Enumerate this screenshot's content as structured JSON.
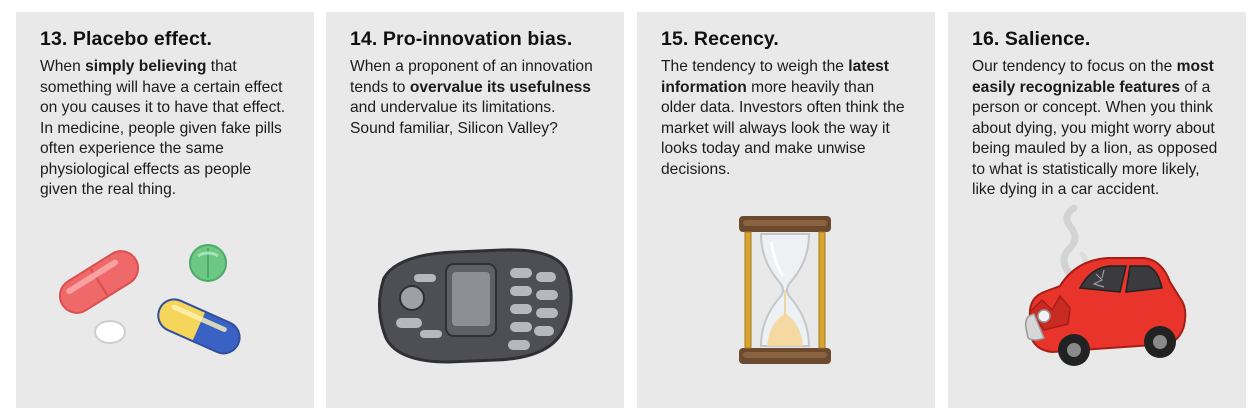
{
  "cards": [
    {
      "title": "13. Placebo effect.",
      "body": [
        {
          "t": "When ",
          "b": false
        },
        {
          "t": "simply believing",
          "b": true
        },
        {
          "t": " that something will have a certain effect on you causes it to have that effect. In medicine, people given fake pills often experience the same physiological effects as people given the real thing.",
          "b": false
        }
      ],
      "illustration": "pills-icon"
    },
    {
      "title": "14. Pro-innovation bias.",
      "body": [
        {
          "t": "When a proponent of an innovation tends to ",
          "b": false
        },
        {
          "t": "overvalue its usefulness",
          "b": true
        },
        {
          "t": " and undervalue its limitations. Sound familiar, Silicon Valley?",
          "b": false
        }
      ],
      "illustration": "phone-icon"
    },
    {
      "title": "15. Recency.",
      "body": [
        {
          "t": "The tendency to weigh the ",
          "b": false
        },
        {
          "t": "latest information",
          "b": true
        },
        {
          "t": " more heavily than older data. Investors often think the market will always look the way it looks today and make unwise decisions.",
          "b": false
        }
      ],
      "illustration": "hourglass-icon"
    },
    {
      "title": "16. Salience.",
      "body": [
        {
          "t": "Our tendency to focus on the ",
          "b": false
        },
        {
          "t": "most easily recognizable features",
          "b": true
        },
        {
          "t": " of a person or concept. When you think about dying, you might worry about being mauled by a lion, as opposed to what is statistically more likely, like dying in a car accident.",
          "b": false
        }
      ],
      "illustration": "crashed-car-icon"
    }
  ]
}
